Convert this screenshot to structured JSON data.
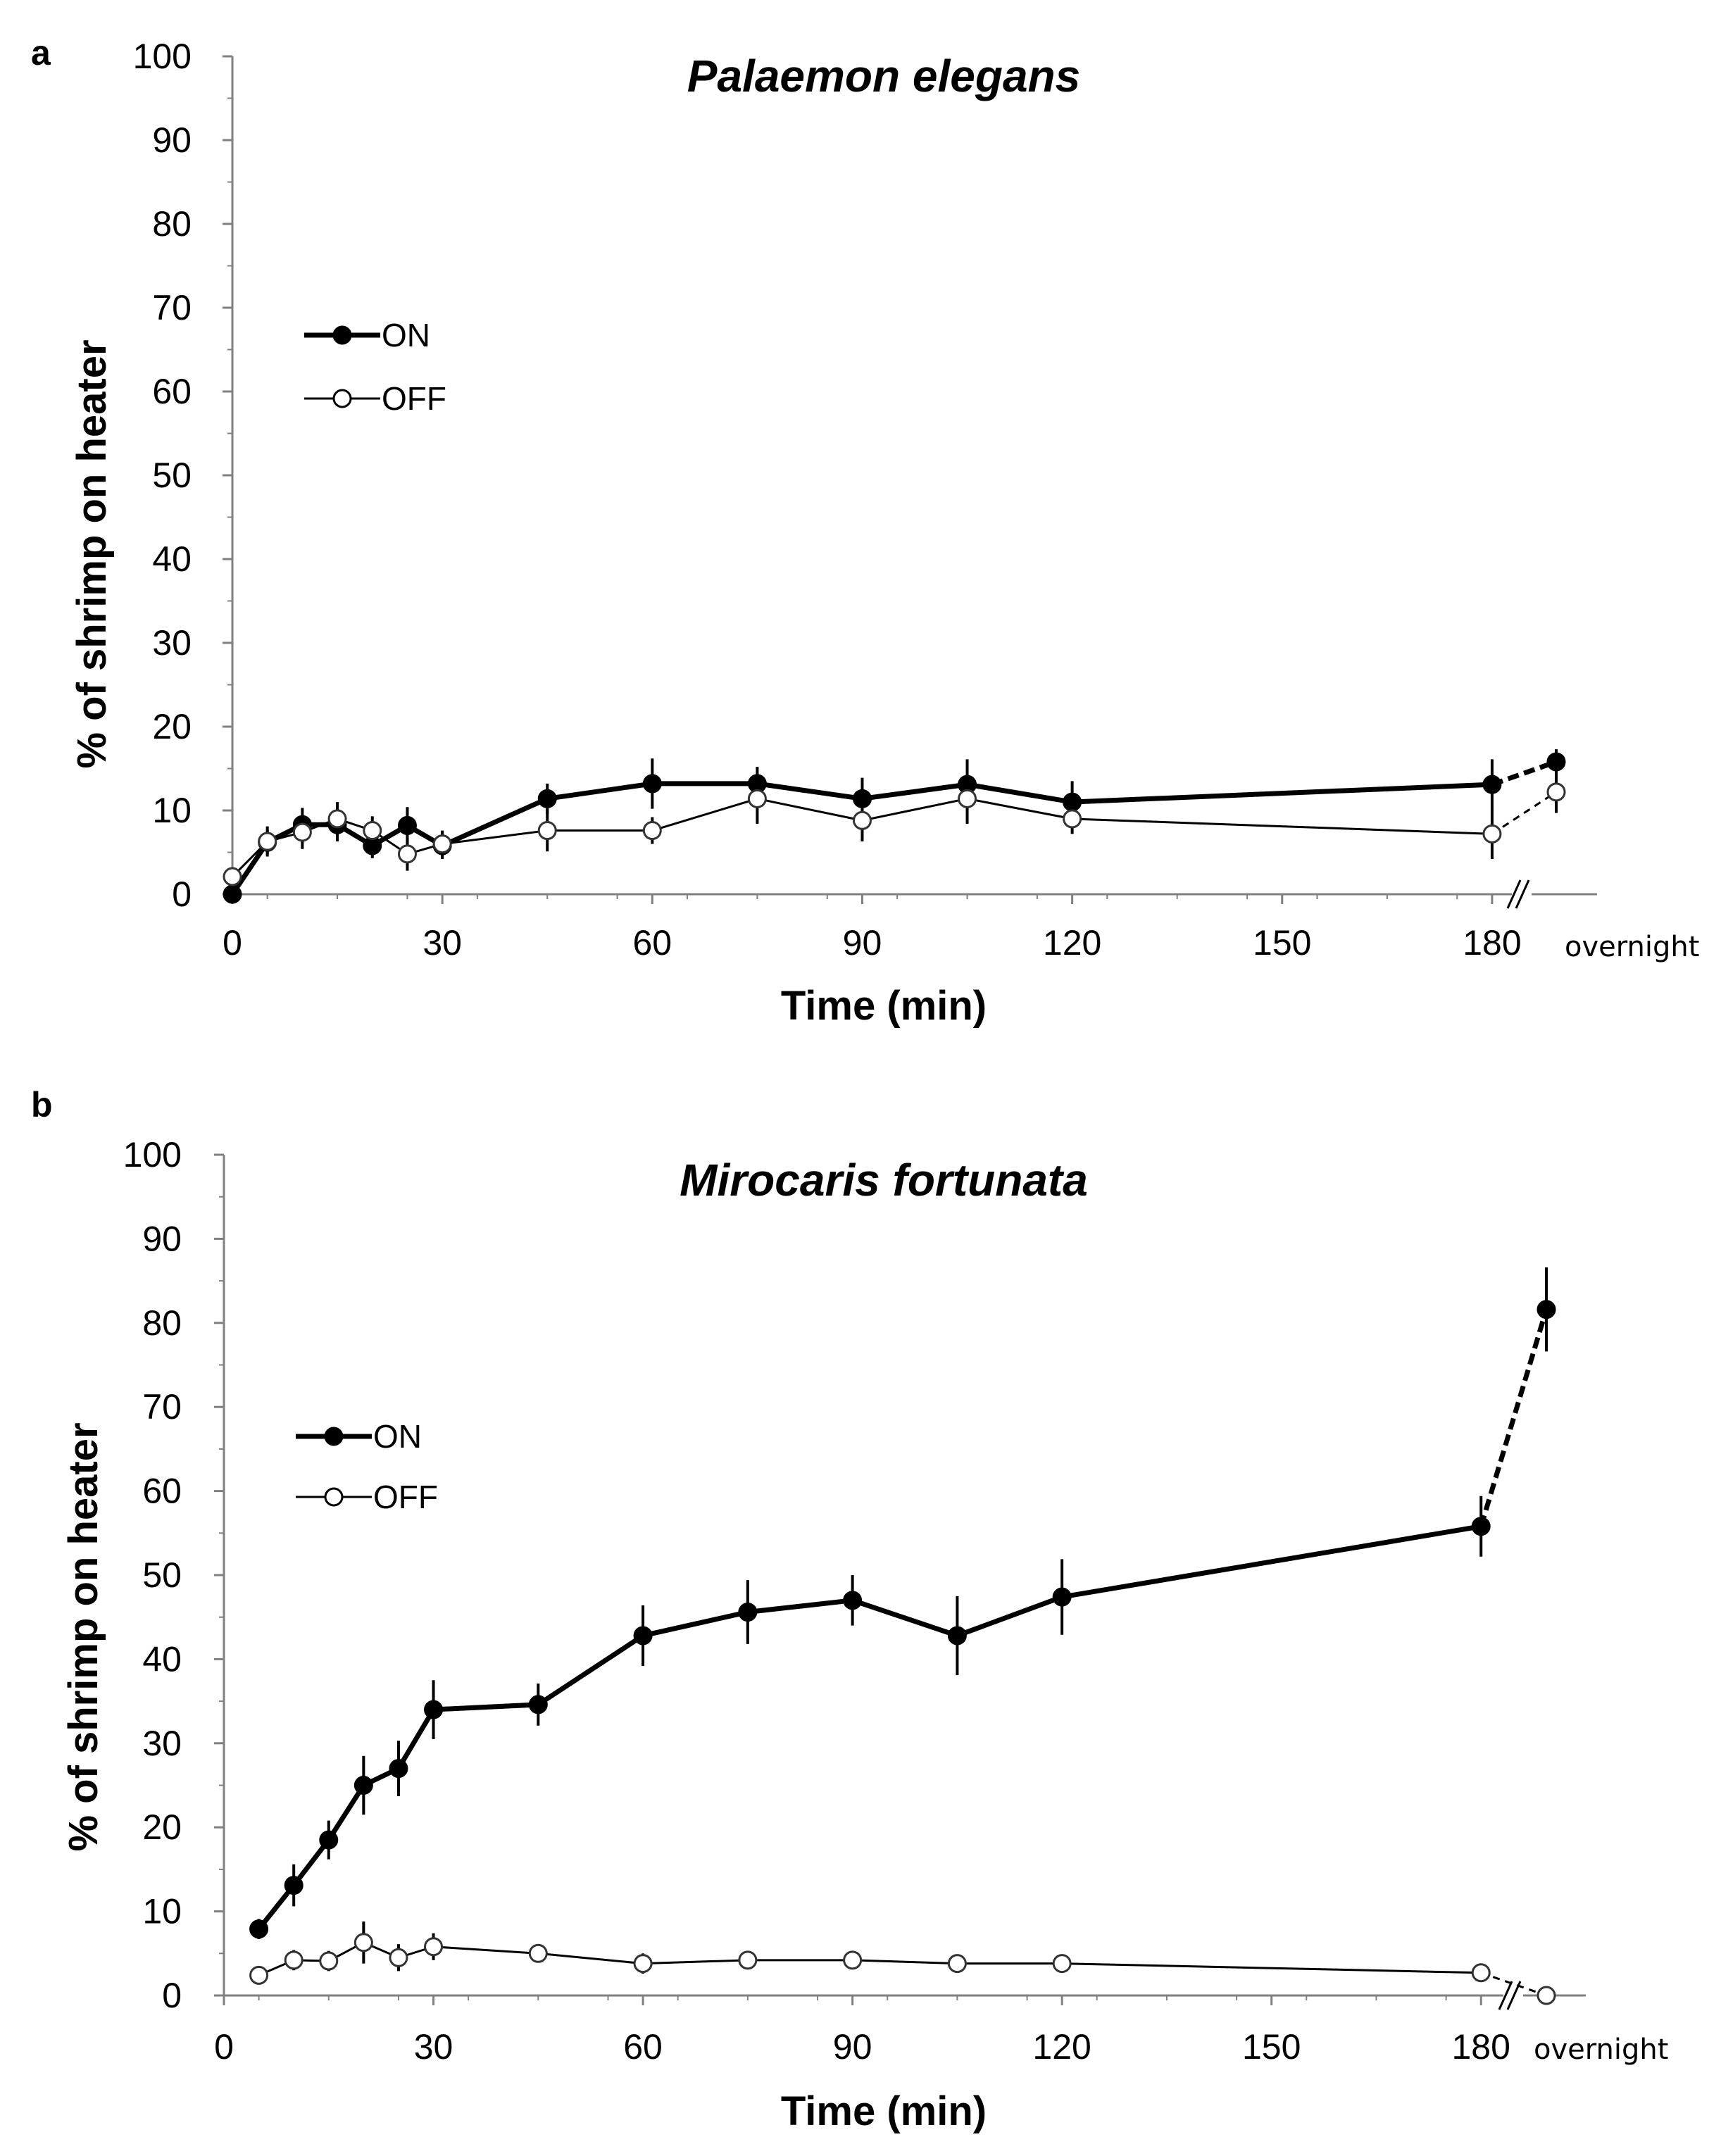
{
  "chart_data": [
    {
      "type": "line",
      "panel_label": "a",
      "title": "Palaemon elegans",
      "xlabel": "Time (min)",
      "ylabel": "% of shrimp on heater",
      "xlim": [
        0,
        195
      ],
      "ylim": [
        0,
        100
      ],
      "x_ticks": [
        0,
        30,
        60,
        90,
        120,
        150,
        180
      ],
      "y_ticks": [
        0,
        10,
        20,
        30,
        40,
        50,
        60,
        70,
        80,
        90,
        100
      ],
      "x_tick_labels": [
        "0",
        "30",
        "60",
        "90",
        "120",
        "150",
        "180"
      ],
      "y_tick_labels": [
        "0",
        "10",
        "20",
        "30",
        "40",
        "50",
        "60",
        "70",
        "80",
        "90",
        "100"
      ],
      "overnight_label": "overnight",
      "overnight_x": 195,
      "legend_position": "upper-left",
      "series": [
        {
          "name": "ON",
          "marker": "filled",
          "x": [
            0,
            5,
            10,
            15,
            20,
            25,
            30,
            45,
            60,
            75,
            90,
            105,
            120,
            180
          ],
          "values": [
            0,
            6.2,
            8.3,
            8.3,
            5.8,
            8.2,
            5.8,
            11.4,
            13.2,
            13.2,
            11.4,
            13.1,
            11.0,
            13.1
          ],
          "error": [
            0.6,
            1.5,
            2.0,
            2.0,
            1.5,
            2.2,
            1.6,
            1.8,
            3.0,
            2.0,
            2.5,
            3.0,
            2.5,
            3.0
          ],
          "overnight_value": 15.8,
          "overnight_error": 1.5
        },
        {
          "name": "OFF",
          "marker": "open",
          "x": [
            0,
            5,
            10,
            15,
            20,
            25,
            30,
            45,
            60,
            75,
            90,
            105,
            120,
            180
          ],
          "values": [
            2.1,
            6.3,
            7.4,
            9.0,
            7.6,
            4.8,
            6.0,
            7.6,
            7.6,
            11.4,
            8.8,
            11.4,
            9.0,
            7.2
          ],
          "error": [
            0.6,
            1.8,
            2.0,
            2.0,
            1.7,
            2.0,
            1.6,
            2.5,
            1.6,
            3.0,
            2.5,
            3.0,
            1.8,
            3.0
          ],
          "overnight_value": 12.2,
          "overnight_error": 2.5
        }
      ]
    },
    {
      "type": "line",
      "panel_label": "b",
      "title": "Mirocaris fortunata",
      "xlabel": "Time (min)",
      "ylabel": "% of shrimp on heater",
      "xlim": [
        0,
        195
      ],
      "ylim": [
        0,
        100
      ],
      "x_ticks": [
        0,
        30,
        60,
        90,
        120,
        150,
        180
      ],
      "y_ticks": [
        0,
        10,
        20,
        30,
        40,
        50,
        60,
        70,
        80,
        90,
        100
      ],
      "x_tick_labels": [
        "0",
        "30",
        "60",
        "90",
        "120",
        "150",
        "180"
      ],
      "y_tick_labels": [
        "0",
        "10",
        "20",
        "30",
        "40",
        "50",
        "60",
        "70",
        "80",
        "90",
        "100"
      ],
      "overnight_label": "overnight",
      "overnight_x": 195,
      "legend_position": "center-left",
      "series": [
        {
          "name": "ON",
          "marker": "filled",
          "x": [
            5,
            10,
            15,
            20,
            25,
            30,
            45,
            60,
            75,
            90,
            105,
            120,
            180
          ],
          "values": [
            7.9,
            13.1,
            18.5,
            25.0,
            27.0,
            34.0,
            34.6,
            42.8,
            45.6,
            47.0,
            42.8,
            47.4,
            55.8
          ],
          "error": [
            1.2,
            2.5,
            2.3,
            3.5,
            3.3,
            3.5,
            2.5,
            3.6,
            3.8,
            3.0,
            4.7,
            4.5,
            3.6
          ],
          "overnight_value": 81.6,
          "overnight_error": 5.0
        },
        {
          "name": "OFF",
          "marker": "open",
          "x": [
            5,
            10,
            15,
            20,
            25,
            30,
            45,
            60,
            75,
            90,
            105,
            120,
            180
          ],
          "values": [
            2.4,
            4.2,
            4.1,
            6.3,
            4.5,
            5.8,
            5.0,
            3.8,
            4.2,
            4.2,
            3.8,
            3.8,
            2.7
          ],
          "error": [
            0.8,
            1.2,
            1.2,
            2.5,
            1.6,
            1.6,
            0.8,
            1.2,
            0.8,
            0.8,
            0.8,
            0.8,
            1.0
          ],
          "overnight_value": 0.0,
          "overnight_error": 0.5
        }
      ]
    }
  ]
}
